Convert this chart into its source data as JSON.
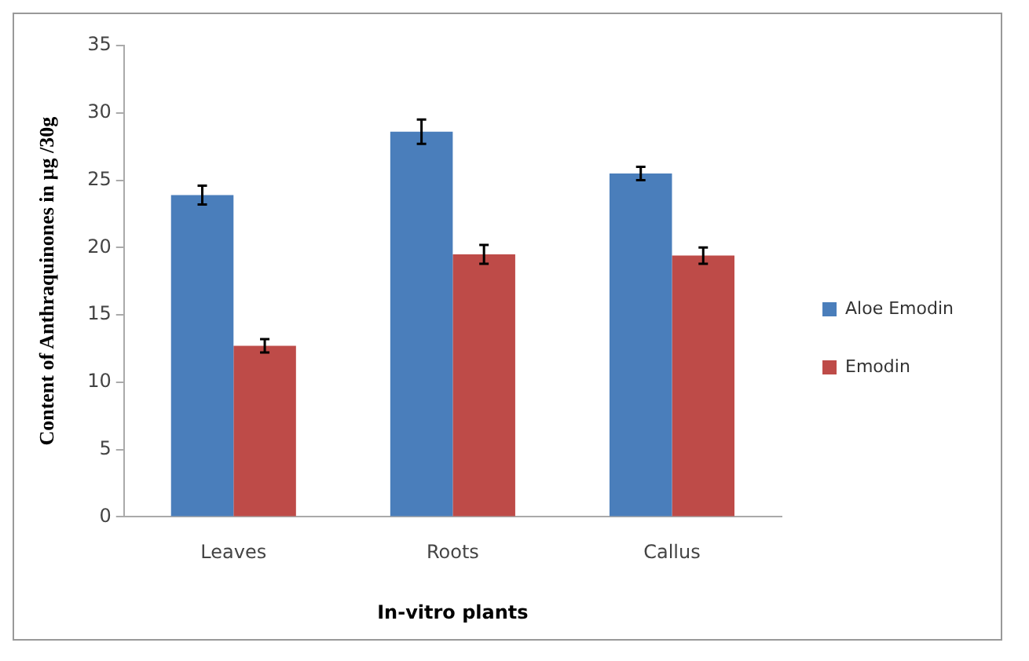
{
  "chart_data": {
    "type": "bar",
    "xlabel": "In-vitro plants",
    "ylabel": "Content of Anthraquinones in µg /30g",
    "categories": [
      "Leaves",
      "Roots",
      "Callus"
    ],
    "series": [
      {
        "name": "Aloe Emodin",
        "color": "#4a7ebb",
        "values": [
          23.9,
          28.6,
          25.5
        ],
        "errors": [
          0.7,
          0.9,
          0.5
        ]
      },
      {
        "name": "Emodin",
        "color": "#be4b48",
        "values": [
          12.7,
          19.5,
          19.4
        ],
        "errors": [
          0.5,
          0.7,
          0.6
        ]
      }
    ],
    "ylim": [
      0,
      35
    ],
    "yticks": [
      0,
      5,
      10,
      15,
      20,
      25,
      30,
      35
    ],
    "grid": false,
    "legend": "right"
  }
}
